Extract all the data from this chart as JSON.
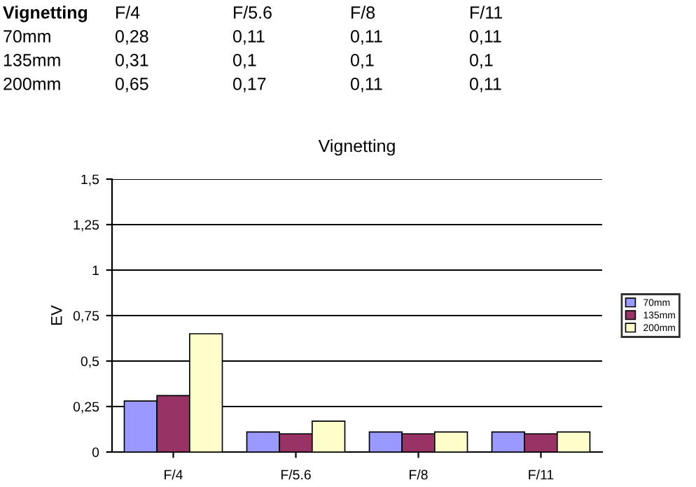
{
  "chart_data": {
    "type": "bar",
    "title": "Vignetting",
    "ylabel": "EV",
    "annotations": [
      "Vignetting"
    ],
    "categories": [
      "F/4",
      "F/5.6",
      "F/8",
      "F/11"
    ],
    "series": [
      {
        "name": "70mm",
        "color": "#9999ff",
        "values": [
          0.28,
          0.11,
          0.11,
          0.11
        ],
        "value_labels": [
          "0,28",
          "0,11",
          "0,11",
          "0,11"
        ]
      },
      {
        "name": "135mm",
        "color": "#993366",
        "values": [
          0.31,
          0.1,
          0.1,
          0.1
        ],
        "value_labels": [
          "0,31",
          "0,1",
          "0,1",
          "0,1"
        ]
      },
      {
        "name": "200mm",
        "color": "#ffffcc",
        "values": [
          0.65,
          0.17,
          0.11,
          0.11
        ],
        "value_labels": [
          "0,65",
          "0,17",
          "0,11",
          "0,11"
        ]
      }
    ],
    "ylim": [
      0,
      1.5
    ],
    "yticks": [
      0,
      {
        "value": 0.25,
        "label": "0,25"
      },
      {
        "value": 0.5,
        "label": "0,5"
      },
      {
        "value": 0.75,
        "label": "0,75"
      },
      1,
      {
        "value": 1.25,
        "label": "1,25"
      },
      {
        "value": 1.5,
        "label": "1,5"
      }
    ],
    "grid": "y",
    "legend": "right"
  }
}
